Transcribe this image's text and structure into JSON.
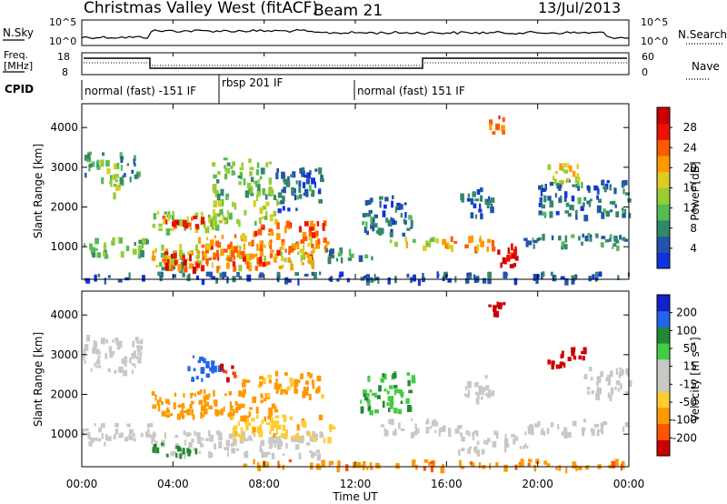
{
  "header": {
    "title": "Christmas Valley West (fitACF)",
    "beam": "Beam 21",
    "date": "13/Jul/2013"
  },
  "panels": {
    "nsky": {
      "label": "N.Sky",
      "left_ticks": [
        "10^5",
        "10^0"
      ],
      "right_ticks": [
        "10^5",
        "10^0"
      ],
      "right_label": "N.Search"
    },
    "freq": {
      "label_line1": "Freq.",
      "label_line2": "[MHz]",
      "left_ticks": [
        "18",
        "8"
      ],
      "right_ticks": [
        "60",
        "0"
      ],
      "right_label": "Nave"
    },
    "cpid": {
      "label": "CPID",
      "segments": [
        "normal (fast) -151 IF",
        "rbsp 201 IF",
        "normal (fast) 151 IF"
      ]
    }
  },
  "x_axis": {
    "label": "Time UT",
    "ticks": [
      "00:00",
      "04:00",
      "08:00",
      "12:00",
      "16:00",
      "20:00",
      "00:00"
    ]
  },
  "colors": {
    "power": [
      "#1133dd",
      "#2255aa",
      "#33886a",
      "#55bb55",
      "#99cc33",
      "#ddcc22",
      "#ff9900",
      "#ff5a00",
      "#ee1100",
      "#cc0000"
    ],
    "velocity": [
      "#1122cc",
      "#2266ee",
      "#228833",
      "#44cc44",
      "#c8c8c4",
      "#c8c8c4",
      "#ffcc33",
      "#ff9900",
      "#ff5500",
      "#cc0000"
    ]
  },
  "chart_data": [
    {
      "type": "heatmap",
      "title": "Power",
      "ylabel": "Slant Range [km]",
      "xlabel": "Time UT",
      "xlim": [
        0,
        24
      ],
      "ylim": [
        180,
        4600
      ],
      "yticks": [
        "1000",
        "2000",
        "3000",
        "4000"
      ],
      "colorbar": {
        "label": "Power [dB]",
        "range": [
          0,
          32
        ],
        "ticks": [
          "4",
          "8",
          "12",
          "16",
          "20",
          "24",
          "28"
        ]
      },
      "regions": [
        {
          "t0": 0.0,
          "t1": 0.9,
          "r0": 2700,
          "r1": 3400,
          "v": 10
        },
        {
          "t0": 0.9,
          "t1": 1.6,
          "r0": 2300,
          "r1": 3300,
          "v": 14
        },
        {
          "t0": 1.6,
          "t1": 2.6,
          "r0": 2700,
          "r1": 3400,
          "v": 8
        },
        {
          "t0": 0.0,
          "t1": 3.0,
          "r0": 800,
          "r1": 1250,
          "v": 12
        },
        {
          "t0": 3.0,
          "t1": 4.4,
          "r0": 450,
          "r1": 900,
          "v": 10
        },
        {
          "t0": 3.0,
          "t1": 10.3,
          "r0": 500,
          "r1": 1100,
          "v": 18
        },
        {
          "t0": 3.5,
          "t1": 8.5,
          "r0": 500,
          "r1": 900,
          "v": 26
        },
        {
          "t0": 5.0,
          "t1": 11.0,
          "r0": 750,
          "r1": 1350,
          "v": 22
        },
        {
          "t0": 3.0,
          "t1": 6.2,
          "r0": 1400,
          "r1": 1950,
          "v": 14
        },
        {
          "t0": 3.5,
          "t1": 5.5,
          "r0": 1500,
          "r1": 1800,
          "v": 26
        },
        {
          "t0": 5.5,
          "t1": 8.6,
          "r0": 1650,
          "r1": 2200,
          "v": 15
        },
        {
          "t0": 7.5,
          "t1": 10.6,
          "r0": 1350,
          "r1": 1700,
          "v": 24
        },
        {
          "t0": 5.5,
          "t1": 8.3,
          "r0": 2300,
          "r1": 3250,
          "v": 12
        },
        {
          "t0": 8.4,
          "t1": 10.5,
          "r0": 1900,
          "r1": 3000,
          "v": 6
        },
        {
          "t0": 10.5,
          "t1": 12.8,
          "r0": 700,
          "r1": 1000,
          "v": 8
        },
        {
          "t0": 12.2,
          "t1": 14.5,
          "r0": 1350,
          "r1": 2300,
          "v": 6
        },
        {
          "t0": 13.5,
          "t1": 16.0,
          "r0": 1000,
          "r1": 1250,
          "v": 16
        },
        {
          "t0": 15.8,
          "t1": 18.2,
          "r0": 1000,
          "r1": 1300,
          "v": 22
        },
        {
          "t0": 18.2,
          "t1": 19.3,
          "r0": 550,
          "r1": 1100,
          "v": 28
        },
        {
          "t0": 19.3,
          "t1": 24.0,
          "r0": 1000,
          "r1": 1350,
          "v": 8
        },
        {
          "t0": 20.0,
          "t1": 24.0,
          "r0": 1800,
          "r1": 2700,
          "v": 6
        },
        {
          "t0": 20.4,
          "t1": 22.0,
          "r0": 2650,
          "r1": 3150,
          "v": 18
        },
        {
          "t0": 17.8,
          "t1": 18.5,
          "r0": 3900,
          "r1": 4350,
          "v": 26
        },
        {
          "t0": 16.5,
          "t1": 18.0,
          "r0": 1800,
          "r1": 2500,
          "v": 6
        },
        {
          "t0": 0.0,
          "t1": 24.0,
          "r0": 180,
          "r1": 380,
          "v": 5
        }
      ]
    },
    {
      "type": "heatmap",
      "title": "Velocity",
      "ylabel": "Slant Range [km]",
      "xlabel": "Time UT",
      "xlim": [
        0,
        24
      ],
      "ylim": [
        180,
        4600
      ],
      "yticks": [
        "1000",
        "2000",
        "3000",
        "4000"
      ],
      "colorbar": {
        "label": "Velocity [m s⁻¹]",
        "range": [
          -250,
          250
        ],
        "ticks": [
          "200",
          "100",
          "50",
          "15",
          "-15",
          "-50",
          "-100",
          "-200"
        ]
      },
      "regions": [
        {
          "t0": 0.0,
          "t1": 2.6,
          "r0": 2600,
          "r1": 3500,
          "v": 0
        },
        {
          "t0": 0.0,
          "t1": 3.0,
          "r0": 800,
          "r1": 1300,
          "v": 0
        },
        {
          "t0": 3.0,
          "t1": 10.5,
          "r0": 500,
          "r1": 1100,
          "v": 0
        },
        {
          "t0": 3.0,
          "t1": 5.0,
          "r0": 500,
          "r1": 800,
          "v": 80
        },
        {
          "t0": 3.0,
          "t1": 8.5,
          "r0": 1450,
          "r1": 2150,
          "v": -80
        },
        {
          "t0": 6.5,
          "t1": 11.0,
          "r0": 900,
          "r1": 1500,
          "v": -40
        },
        {
          "t0": 4.5,
          "t1": 6.0,
          "r0": 2400,
          "r1": 3000,
          "v": 150
        },
        {
          "t0": 6.0,
          "t1": 6.8,
          "r0": 2400,
          "r1": 2800,
          "v": -200
        },
        {
          "t0": 7.0,
          "t1": 10.5,
          "r0": 2000,
          "r1": 2600,
          "v": -60
        },
        {
          "t0": 7.0,
          "t1": 24.0,
          "r0": 180,
          "r1": 380,
          "v": -90
        },
        {
          "t0": 12.2,
          "t1": 14.5,
          "r0": 1600,
          "r1": 2600,
          "v": 45
        },
        {
          "t0": 13.0,
          "t1": 16.5,
          "r0": 1050,
          "r1": 1400,
          "v": 0
        },
        {
          "t0": 16.5,
          "t1": 19.5,
          "r0": 600,
          "r1": 1100,
          "v": 0
        },
        {
          "t0": 19.5,
          "t1": 24.0,
          "r0": 1050,
          "r1": 1400,
          "v": 0
        },
        {
          "t0": 20.4,
          "t1": 22.0,
          "r0": 2700,
          "r1": 3200,
          "v": -220
        },
        {
          "t0": 22.0,
          "t1": 24.0,
          "r0": 2000,
          "r1": 2700,
          "v": 0
        },
        {
          "t0": 17.8,
          "t1": 18.5,
          "r0": 3900,
          "r1": 4350,
          "v": -220
        },
        {
          "t0": 16.5,
          "t1": 18.0,
          "r0": 1900,
          "r1": 2500,
          "v": 0
        }
      ]
    }
  ]
}
